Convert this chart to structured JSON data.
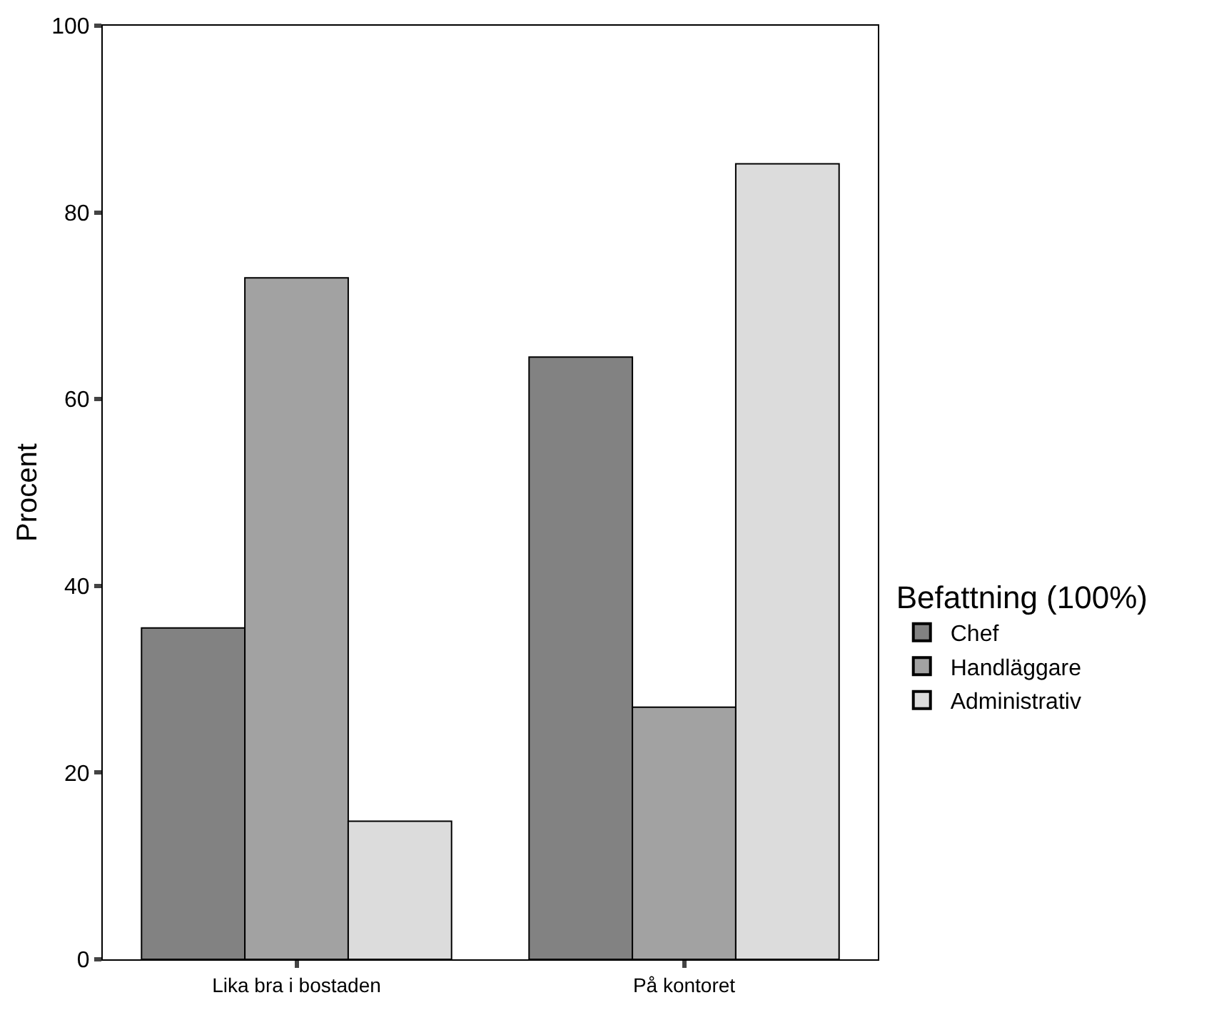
{
  "chart_data": {
    "type": "bar",
    "ylabel": "Procent",
    "legend_title": "Befattning (100%)",
    "categories": [
      "Lika bra i bostaden",
      "På kontoret"
    ],
    "series": [
      {
        "name": "Chef",
        "color": "#828282",
        "values": [
          35.5,
          64.5
        ]
      },
      {
        "name": "Handläggare",
        "color": "#a2a2a2",
        "values": [
          73,
          27
        ]
      },
      {
        "name": "Administrativ",
        "color": "#dcdcdc",
        "values": [
          14.8,
          85.2
        ]
      }
    ],
    "ylim": [
      0,
      100
    ],
    "yticks": [
      0,
      20,
      40,
      60,
      80,
      100
    ],
    "grid": false,
    "legend": "right"
  }
}
